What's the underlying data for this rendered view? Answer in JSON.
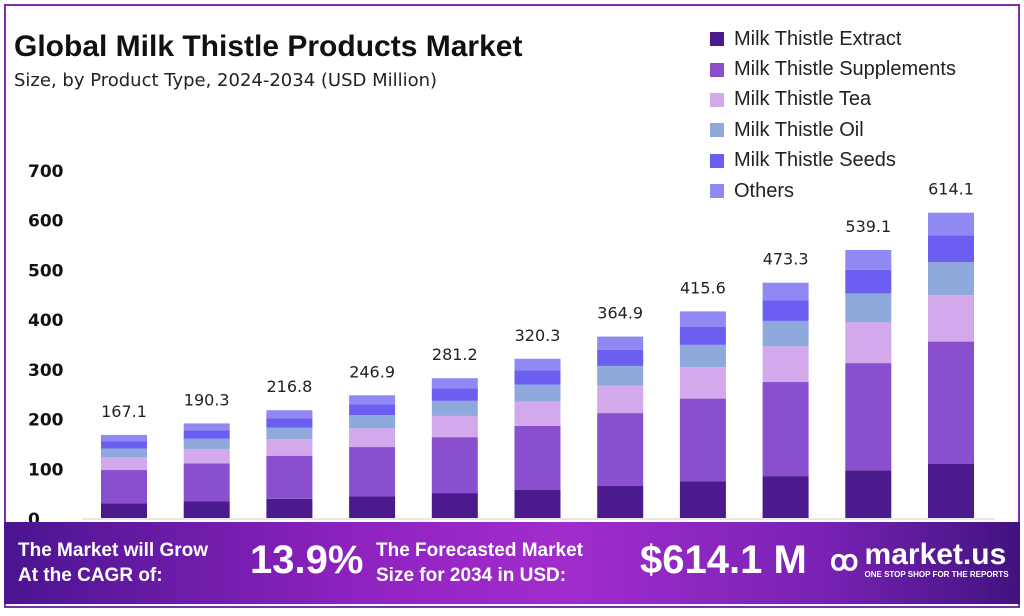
{
  "title": "Global Milk Thistle Products Market",
  "subtitle": "Size, by Product Type, 2024-2034 (USD Million)",
  "chart_data": {
    "type": "bar",
    "stacked": true,
    "title": "Global Milk Thistle Products Market",
    "subtitle": "Size, by Product Type, 2024-2034 (USD Million)",
    "ylim": [
      0,
      700
    ],
    "yticks": [
      0,
      100,
      200,
      300,
      400,
      500,
      600,
      700
    ],
    "grid": false,
    "legend": "top-right",
    "totals": [
      167.1,
      190.3,
      216.8,
      246.9,
      281.2,
      320.3,
      364.9,
      415.6,
      473.3,
      539.1,
      614.1
    ],
    "total_labels": [
      "167.1",
      "190.3",
      "216.8",
      "246.9",
      "281.2",
      "320.3",
      "364.9",
      "415.6",
      "473.3",
      "539.1",
      "614.1"
    ],
    "series": [
      {
        "name": "Milk Thistle Extract",
        "color": "#4b1a8c",
        "values": [
          29.7,
          33.9,
          38.6,
          43.9,
          50.1,
          57.0,
          65.0,
          74.0,
          84.2,
          96.0,
          109.3
        ]
      },
      {
        "name": "Milk Thistle Supplements",
        "color": "#8a4fcf",
        "values": [
          66.8,
          76.1,
          86.7,
          98.8,
          112.5,
          128.1,
          146.0,
          166.2,
          189.3,
          215.6,
          245.6
        ]
      },
      {
        "name": "Milk Thistle Tea",
        "color": "#d3a9ec",
        "values": [
          25.4,
          28.9,
          33.0,
          37.5,
          42.7,
          48.7,
          55.5,
          63.2,
          71.9,
          81.9,
          93.3
        ]
      },
      {
        "name": "Milk Thistle Oil",
        "color": "#8fa9dc",
        "values": [
          18.0,
          20.6,
          23.4,
          26.7,
          30.4,
          34.6,
          39.4,
          44.9,
          51.1,
          58.2,
          66.3
        ]
      },
      {
        "name": "Milk Thistle Seeds",
        "color": "#6b5ef0",
        "values": [
          14.7,
          16.7,
          19.1,
          21.7,
          24.7,
          28.2,
          32.1,
          36.6,
          41.7,
          47.4,
          54.0
        ]
      },
      {
        "name": "Others",
        "color": "#9088f3",
        "values": [
          12.5,
          14.1,
          16.0,
          18.3,
          20.8,
          23.7,
          26.9,
          30.7,
          35.1,
          40.0,
          45.6
        ]
      }
    ]
  },
  "footer": {
    "cagr_text_1": "The Market will Grow",
    "cagr_text_2": "At the CAGR of:",
    "cagr_value": "13.9%",
    "forecast_text_1": "The Forecasted Market",
    "forecast_text_2": "Size for 2034 in USD:",
    "forecast_value": "$614.1 M",
    "logo_text": "market.us",
    "logo_tagline": "ONE STOP SHOP FOR THE REPORTS"
  }
}
